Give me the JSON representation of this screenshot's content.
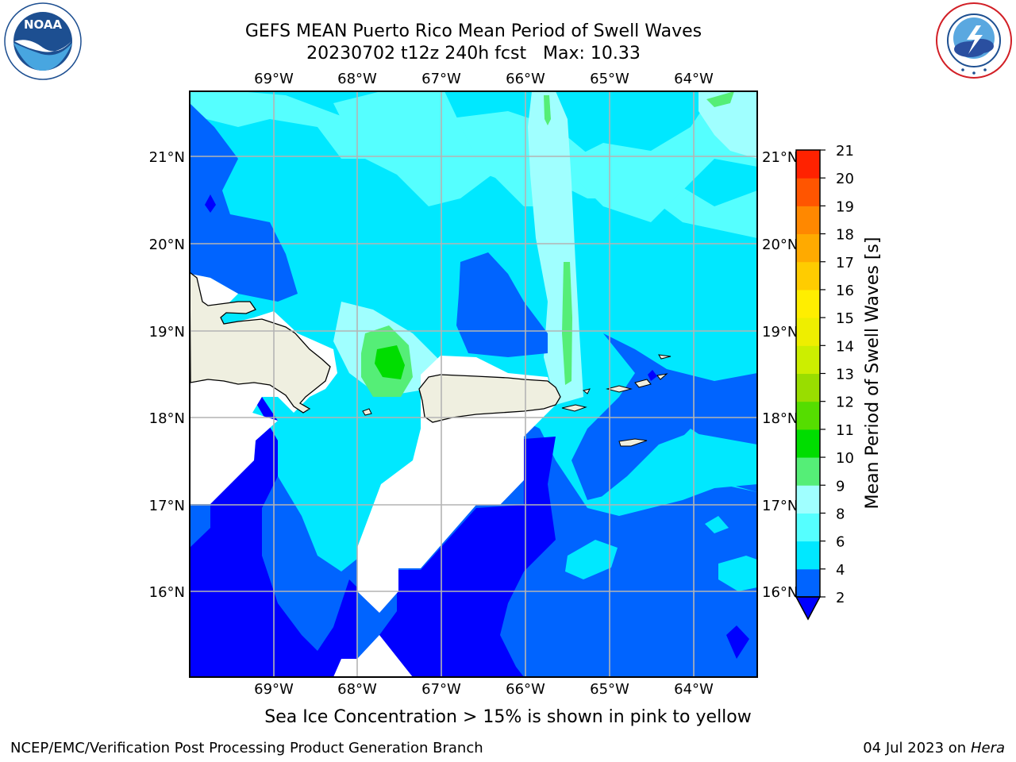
{
  "header": {
    "title_line1": "GEFS MEAN Puerto Rico Mean Period of Swell Waves",
    "title_line2": "20230702 t12z 240h fcst   Max: 10.33"
  },
  "logos": {
    "left": {
      "icon": "noaa-logo-icon",
      "text": "NOAA",
      "ring_text": "NATIONAL OCEANIC AND ATMOSPHERIC ADMINISTRATION · U.S. DEPARTMENT OF COMMERCE"
    },
    "right": {
      "icon": "nws-logo-icon",
      "ring_text": "NATIONAL WEATHER SERVICE"
    }
  },
  "note": "Sea Ice Concentration > 15% is shown in pink to yellow",
  "footer": {
    "left": "NCEP/EMC/Verification Post Processing Product Generation Branch",
    "right_prefix": "04 Jul 2023 on ",
    "right_host": "Hera"
  },
  "chart_data": {
    "type": "heatmap",
    "title": "GEFS MEAN Puerto Rico Mean Period of Swell Waves",
    "subtitle": "20230702 t12z 240h fcst   Max: 10.33",
    "map_extent": {
      "lon": [
        -70.0,
        -63.25
      ],
      "lat": [
        15.0,
        21.75
      ]
    },
    "x_ticks": [
      "69°W",
      "68°W",
      "67°W",
      "66°W",
      "65°W",
      "64°W"
    ],
    "x_tick_values": [
      -69,
      -68,
      -67,
      -66,
      -65,
      -64
    ],
    "y_ticks": [
      "21°N",
      "20°N",
      "19°N",
      "18°N",
      "17°N",
      "16°N"
    ],
    "y_tick_values": [
      21,
      20,
      19,
      18,
      17,
      16
    ],
    "grid": true,
    "max_value": 10.33,
    "colorbar": {
      "label": "Mean Period of Swell Waves [s]",
      "ticks": [
        2,
        4,
        6,
        8,
        9,
        10,
        11,
        12,
        13,
        14,
        15,
        16,
        17,
        18,
        19,
        20,
        21
      ],
      "colors": [
        "#0000ff",
        "#0064ff",
        "#00e8ff",
        "#55ffff",
        "#a0ffff",
        "#55ee77",
        "#00dd00",
        "#55dd00",
        "#99dd00",
        "#ccee00",
        "#eeee00",
        "#ffee00",
        "#ffcc00",
        "#ffaa00",
        "#ff8800",
        "#ff5500",
        "#ff2200",
        "#ff0000"
      ],
      "extend": "min"
    },
    "field_colors": {
      "lt2": "#0000ff",
      "2_4": "#0064ff",
      "4_6": "#00e8ff",
      "6_8": "#55ffff",
      "8_9": "#a0ffff",
      "9_10": "#55ee77",
      "10_11": "#00dd00",
      "land": "#efefe0",
      "missing": "#ffffff"
    }
  }
}
